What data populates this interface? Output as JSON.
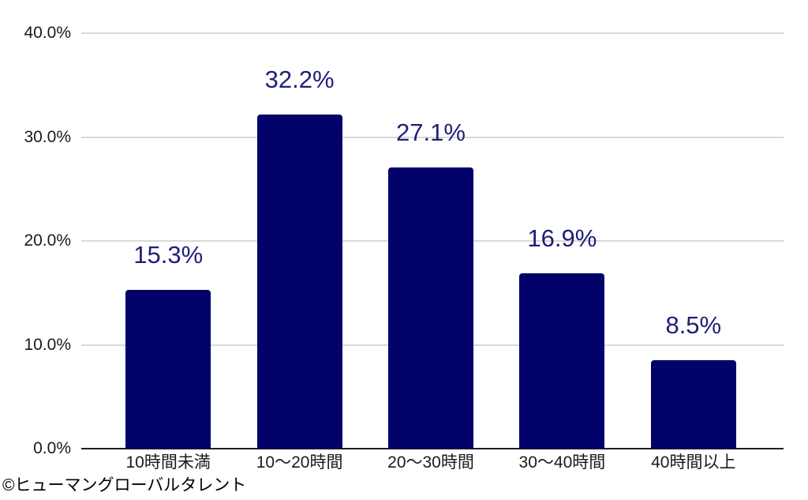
{
  "footer": {
    "copyright": "©ヒューマングローバルタレント"
  },
  "colors": {
    "background": "#ffffff",
    "bar": "#02026a",
    "value_label": "#1f1f78",
    "axis_text": "#1a1a1a",
    "gridline": "#d9d9d9",
    "axis_line": "#1f1f1f"
  },
  "chart_data": {
    "type": "bar",
    "title": "",
    "xlabel": "",
    "ylabel": "",
    "categories": [
      "10時間未満",
      "10〜20時間",
      "20〜30時間",
      "30〜40時間",
      "40時間以上"
    ],
    "values": [
      15.3,
      32.2,
      27.1,
      16.9,
      8.5
    ],
    "value_labels": [
      "15.3%",
      "32.2%",
      "27.1%",
      "16.9%",
      "8.5%"
    ],
    "ylim": [
      0,
      40
    ],
    "y_tick_values": [
      40,
      30,
      20,
      10,
      0
    ],
    "y_tick_labels": [
      "40.0%",
      "30.0%",
      "20.0%",
      "10.0%",
      "0.0%"
    ],
    "grid": "horizontal",
    "legend": "none",
    "bar_color": "#02026a"
  }
}
